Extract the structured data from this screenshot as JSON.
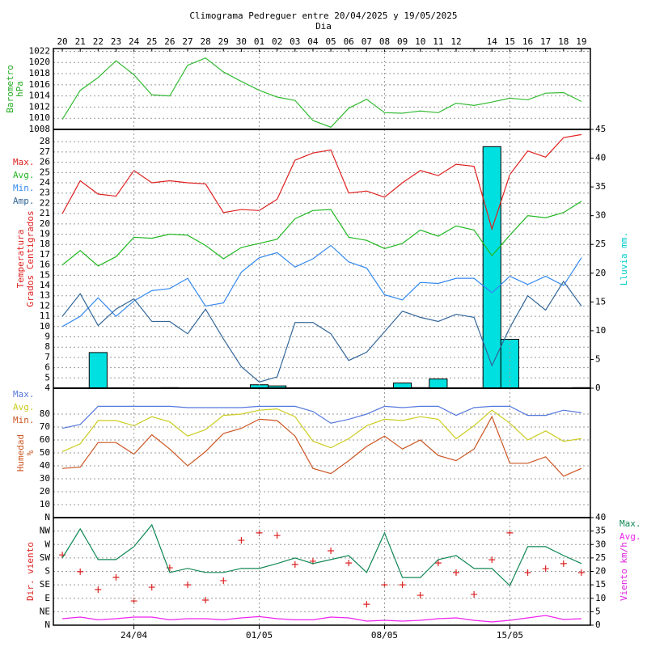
{
  "chart_data": [
    {
      "type": "line",
      "title": "Climograma Pedreguer entre 20/04/2025 y 19/05/2025",
      "xlabel": "Dia",
      "categories": [
        "20",
        "21",
        "22",
        "23",
        "24",
        "25",
        "26",
        "27",
        "28",
        "29",
        "30",
        "01",
        "02",
        "03",
        "04",
        "05",
        "06",
        "07",
        "08",
        "09",
        "10",
        "11",
        "12",
        null,
        "14",
        "15",
        "16",
        "17",
        "18",
        "19"
      ],
      "ylabel": [
        "Barometro",
        "hPa"
      ],
      "ylim": [
        1008,
        1022.5
      ],
      "yticks": [
        1008,
        1010,
        1012,
        1014,
        1016,
        1018,
        1020,
        1022
      ],
      "grid": true,
      "series": [
        {
          "color": "#33bb33",
          "values": [
            1009.8,
            1015,
            1017.3,
            1020.3,
            1017.8,
            1014.2,
            1014,
            1019.5,
            1020.8,
            1018.3,
            1016.6,
            1015,
            1013.8,
            1013.2,
            1009.6,
            1008.4,
            1011.8,
            1013.4,
            1011,
            1010.9,
            1011.3,
            1011,
            1012.7,
            1012.3,
            1012.9,
            1013.6,
            1013.3,
            1014.5,
            1014.6,
            1013
          ]
        }
      ]
    },
    {
      "type": "combo",
      "ylabel": [
        "Temperatura",
        "Grados Centigrados"
      ],
      "y2label": "Lluvia mm.",
      "ylim": [
        4,
        29.2
      ],
      "yticks": [
        4,
        5,
        6,
        7,
        8,
        9,
        10,
        11,
        12,
        13,
        14,
        15,
        16,
        17,
        18,
        19,
        20,
        21,
        22,
        23,
        24,
        25,
        26,
        27,
        28
      ],
      "y2lim": [
        0,
        45
      ],
      "y2ticks": [
        0,
        5,
        10,
        15,
        20,
        25,
        30,
        35,
        40,
        45
      ],
      "grid": true,
      "legend": "left",
      "series": [
        {
          "type": "bar",
          "axis": "y2",
          "color": "#00e0e0",
          "values": [
            0,
            0,
            6.2,
            0,
            0,
            0,
            0.1,
            0,
            0,
            0,
            0,
            0.6,
            0.4,
            0,
            0,
            0,
            0,
            0,
            0,
            0.9,
            0.1,
            1.6,
            0,
            0,
            42,
            8.5,
            0,
            0,
            0,
            0.1
          ]
        },
        {
          "name": "Max.",
          "color": "#e02020",
          "values": [
            21,
            24.2,
            22.9,
            22.7,
            25.2,
            24,
            24.2,
            24,
            23.9,
            21.1,
            21.4,
            21.3,
            22.4,
            26.2,
            26.9,
            27.2,
            23,
            23.2,
            22.6,
            24,
            25.2,
            24.7,
            25.8,
            25.6,
            19.5,
            24.8,
            27.1,
            26.5,
            28.4,
            28.7
          ]
        },
        {
          "name": "Avg.",
          "color": "#22b822",
          "values": [
            16,
            17.4,
            15.9,
            16.8,
            18.7,
            18.6,
            19,
            18.9,
            17.9,
            16.6,
            17.7,
            18.1,
            18.5,
            20.5,
            21.3,
            21.4,
            18.7,
            18.4,
            17.6,
            18.1,
            19.4,
            18.8,
            19.8,
            19.4,
            16.9,
            18.9,
            20.8,
            20.6,
            21.1,
            22.2
          ]
        },
        {
          "name": "Min.",
          "color": "#3388ee",
          "values": [
            10,
            11,
            12.8,
            11,
            12.5,
            13.5,
            13.7,
            14.7,
            12,
            12.3,
            15.3,
            16.7,
            17.2,
            15.8,
            16.6,
            17.9,
            16.3,
            15.7,
            13.1,
            12.6,
            14.3,
            14.2,
            14.7,
            14.7,
            13.3,
            14.9,
            14.1,
            14.9,
            14,
            16.7
          ]
        },
        {
          "name": "Amp.",
          "color": "#336699",
          "values": [
            11,
            13.2,
            10.1,
            11.7,
            12.7,
            10.5,
            10.5,
            9.3,
            11.7,
            8.8,
            6.1,
            4.6,
            5.1,
            10.4,
            10.4,
            9.3,
            6.7,
            7.5,
            9.5,
            11.5,
            10.9,
            10.5,
            11.2,
            10.9,
            6.2,
            9.9,
            13,
            11.6,
            14.4,
            12
          ]
        }
      ]
    },
    {
      "type": "line",
      "ylabel": [
        "Humedad",
        "%"
      ],
      "ylim": [
        0,
        100
      ],
      "yticks": [
        10,
        20,
        30,
        40,
        50,
        60,
        70,
        80
      ],
      "grid": true,
      "legend": "left",
      "series": [
        {
          "name": "Max.",
          "color": "#5577dd",
          "values": [
            69,
            72,
            86,
            86,
            86,
            86,
            86,
            85,
            85,
            85,
            85,
            86,
            86,
            86,
            82,
            73,
            76,
            80,
            86,
            85,
            86,
            86,
            79,
            85,
            86,
            86,
            79,
            79,
            83,
            81
          ]
        },
        {
          "name": "Avg.",
          "color": "#cccc22",
          "values": [
            51,
            57,
            75,
            75,
            71,
            78,
            74,
            63,
            68,
            79,
            80,
            83,
            84,
            78,
            59,
            54,
            61,
            71,
            76,
            75,
            78,
            76,
            61,
            71,
            83,
            73,
            60,
            67,
            59,
            61
          ]
        },
        {
          "name": "Min.",
          "color": "#cc5522",
          "values": [
            38,
            39,
            58,
            58,
            49,
            64,
            53,
            40,
            51,
            65,
            69,
            76,
            75,
            63,
            38,
            34,
            44,
            55,
            63,
            53,
            60,
            48,
            44,
            53,
            78,
            42,
            42,
            47,
            32,
            38
          ]
        }
      ]
    },
    {
      "type": "combo",
      "ylabel": [
        "Dir. viento"
      ],
      "y2label": "Viento km/h",
      "ylim": [
        0,
        360
      ],
      "yticks": [
        {
          "value": 0,
          "label": "N"
        },
        {
          "value": 45,
          "label": "NE"
        },
        {
          "value": 90,
          "label": "E"
        },
        {
          "value": 135,
          "label": "SE"
        },
        {
          "value": 180,
          "label": "S"
        },
        {
          "value": 225,
          "label": "SW"
        },
        {
          "value": 270,
          "label": "W"
        },
        {
          "value": 315,
          "label": "NW"
        },
        {
          "value": 360,
          "label": "N"
        }
      ],
      "y2lim": [
        0,
        40
      ],
      "y2ticks": [
        0,
        5,
        10,
        15,
        20,
        25,
        30,
        35,
        40
      ],
      "grid": true,
      "legend": "right",
      "xticks": [
        {
          "value": 4,
          "label": "24/04"
        },
        {
          "value": 11,
          "label": "01/05"
        },
        {
          "value": 18,
          "label": "08/05"
        },
        {
          "value": 25,
          "label": "15/05"
        }
      ],
      "series": [
        {
          "type": "scatter",
          "marker": "+",
          "color": "#dd2222",
          "values": [
            235,
            179,
            119,
            160,
            81,
            127,
            192,
            135,
            84,
            149,
            284,
            309,
            300,
            203,
            214,
            249,
            208,
            70,
            135,
            135,
            100,
            208,
            176,
            103,
            219,
            309,
            176,
            189,
            206,
            176
          ]
        },
        {
          "name": "Max.",
          "axis": "y2",
          "color": "#118855",
          "values": [
            25,
            35.8,
            24.4,
            24.4,
            29.2,
            37.3,
            19.6,
            21.1,
            19.6,
            19.6,
            21.1,
            21.1,
            22.9,
            25,
            22.9,
            24.4,
            25.9,
            19.6,
            34.3,
            17.7,
            17.7,
            24.4,
            25.9,
            21.1,
            21.1,
            14.7,
            29.2,
            29.2,
            25.9,
            22.9
          ]
        },
        {
          "name": "Avg.",
          "axis": "y2",
          "color": "#ee22ee",
          "values": [
            2.4,
            3,
            2,
            2.4,
            3,
            3,
            2,
            2.4,
            2.4,
            2,
            2.7,
            3.2,
            2.4,
            2,
            2,
            3,
            2.7,
            1.5,
            1.8,
            1.5,
            1.8,
            2.4,
            2.7,
            1.8,
            1.2,
            1.8,
            2.7,
            3.6,
            2.1,
            2.4
          ]
        }
      ]
    }
  ]
}
